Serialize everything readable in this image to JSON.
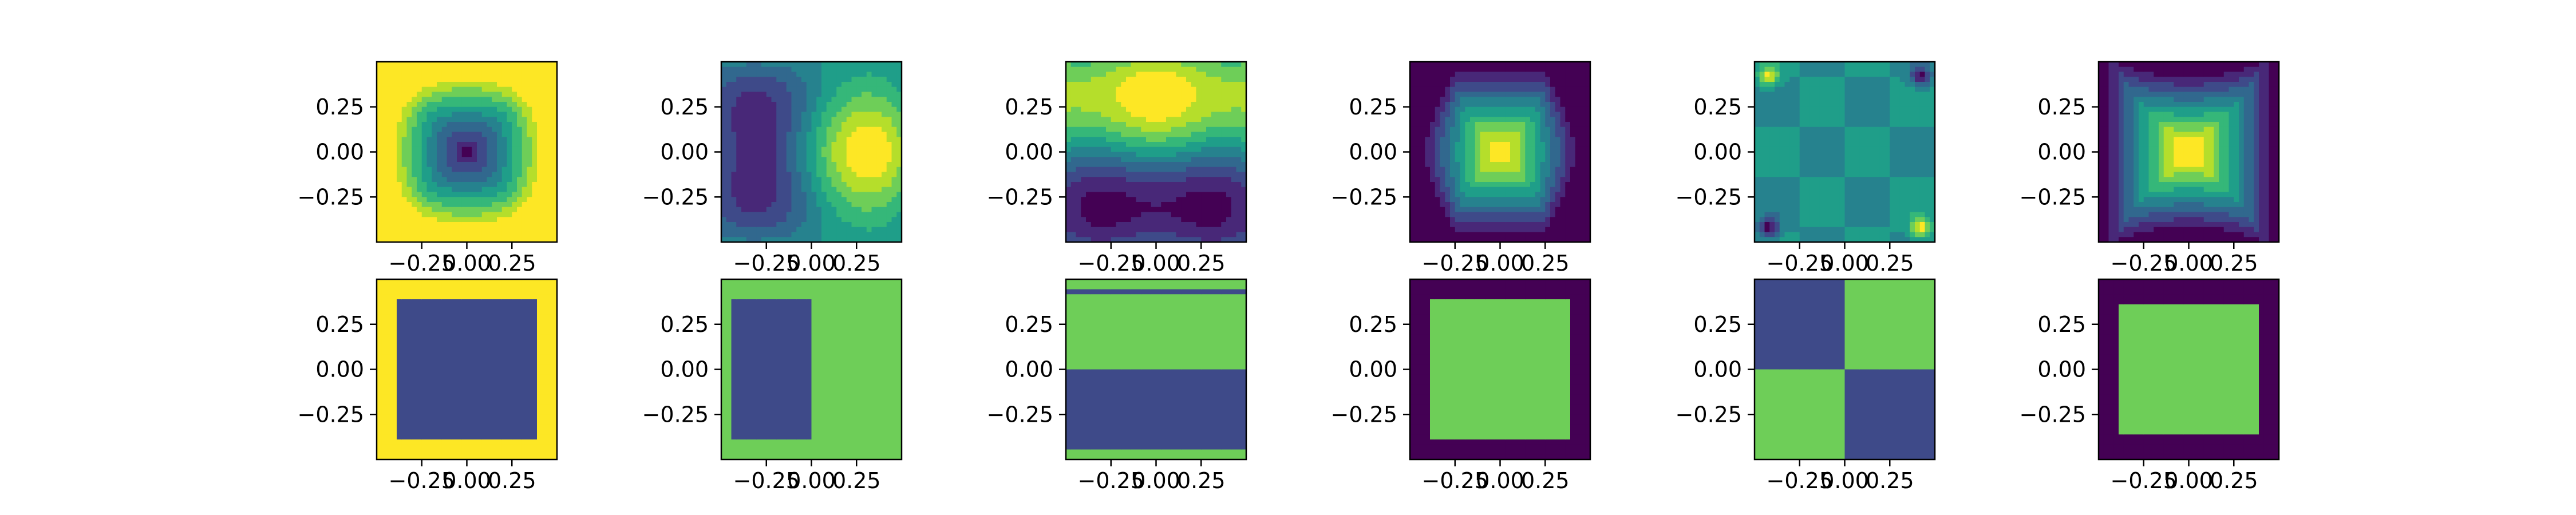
{
  "figure": {
    "layout": "2 rows x 6 columns of contour subplots",
    "colormap": [
      "#440154",
      "#482878",
      "#3e4a89",
      "#31688e",
      "#26828e",
      "#1f9e89",
      "#35b779",
      "#6ece58",
      "#b5de2b",
      "#fde725"
    ]
  },
  "chart_data": [
    {
      "type": "heatmap",
      "row": 1,
      "col": 1,
      "pattern": "square well, minimum at center",
      "xlim": [
        -0.5,
        0.5
      ],
      "ylim": [
        -0.5,
        0.5
      ],
      "xticks": [
        "−0.25",
        "0.00",
        "0.25"
      ],
      "yticks": [
        "0.25",
        "0.00",
        "−0.25"
      ],
      "grid": false
    },
    {
      "type": "heatmap",
      "row": 1,
      "col": 2,
      "pattern": "low lobe left, high lobe right",
      "xlim": [
        -0.5,
        0.5
      ],
      "ylim": [
        -0.5,
        0.5
      ],
      "xticks": [
        "−0.25",
        "0.00",
        "0.25"
      ],
      "yticks": [
        "0.25",
        "0.00",
        "−0.25"
      ],
      "grid": false
    },
    {
      "type": "heatmap",
      "row": 1,
      "col": 3,
      "pattern": "high lobe top, low lobe bottom",
      "xlim": [
        -0.5,
        0.5
      ],
      "ylim": [
        -0.5,
        0.5
      ],
      "xticks": [
        "−0.25",
        "0.00",
        "0.25"
      ],
      "yticks": [
        "0.25",
        "0.00",
        "−0.25"
      ],
      "grid": false
    },
    {
      "type": "heatmap",
      "row": 1,
      "col": 4,
      "pattern": "hourglass peak at center, low border",
      "xlim": [
        -0.5,
        0.5
      ],
      "ylim": [
        -0.5,
        0.5
      ],
      "xticks": [
        "−0.25",
        "0.00",
        "0.25"
      ],
      "yticks": [
        "0.25",
        "0.00",
        "−0.25"
      ],
      "grid": false
    },
    {
      "type": "heatmap",
      "row": 1,
      "col": 5,
      "pattern": "flat field with corner extremes",
      "xlim": [
        -0.5,
        0.5
      ],
      "ylim": [
        -0.5,
        0.5
      ],
      "xticks": [
        "−0.25",
        "0.00",
        "0.25"
      ],
      "yticks": [
        "0.25",
        "0.00",
        "−0.25"
      ],
      "grid": false
    },
    {
      "type": "heatmap",
      "row": 1,
      "col": 6,
      "pattern": "wide peak at center, low border",
      "xlim": [
        -0.5,
        0.5
      ],
      "ylim": [
        -0.5,
        0.5
      ],
      "xticks": [
        "−0.25",
        "0.00",
        "0.25"
      ],
      "yticks": [
        "0.25",
        "0.00",
        "−0.25"
      ],
      "grid": false
    },
    {
      "type": "heatmap",
      "row": 2,
      "col": 1,
      "pattern": "two-level: low square in high border",
      "xlim": [
        -0.5,
        0.5
      ],
      "ylim": [
        -0.5,
        0.5
      ],
      "xticks": [
        "−0.25",
        "0.00",
        "0.25"
      ],
      "yticks": [
        "0.25",
        "0.00",
        "−0.25"
      ],
      "grid": false
    },
    {
      "type": "heatmap",
      "row": 2,
      "col": 2,
      "pattern": "two-level: left/right regions",
      "xlim": [
        -0.5,
        0.5
      ],
      "ylim": [
        -0.5,
        0.5
      ],
      "xticks": [
        "−0.25",
        "0.00",
        "0.25"
      ],
      "yticks": [
        "0.25",
        "0.00",
        "−0.25"
      ],
      "grid": false
    },
    {
      "type": "heatmap",
      "row": 2,
      "col": 3,
      "pattern": "two-level: top/bottom regions",
      "xlim": [
        -0.5,
        0.5
      ],
      "ylim": [
        -0.5,
        0.5
      ],
      "xticks": [
        "−0.25",
        "0.00",
        "0.25"
      ],
      "yticks": [
        "0.25",
        "0.00",
        "−0.25"
      ],
      "grid": false
    },
    {
      "type": "heatmap",
      "row": 2,
      "col": 4,
      "pattern": "two-level: high square in low border",
      "xlim": [
        -0.5,
        0.5
      ],
      "ylim": [
        -0.5,
        0.5
      ],
      "xticks": [
        "−0.25",
        "0.00",
        "0.25"
      ],
      "yticks": [
        "0.25",
        "0.00",
        "−0.25"
      ],
      "grid": false
    },
    {
      "type": "heatmap",
      "row": 2,
      "col": 5,
      "pattern": "two-level: checkerboard quadrants",
      "xlim": [
        -0.5,
        0.5
      ],
      "ylim": [
        -0.5,
        0.5
      ],
      "xticks": [
        "−0.25",
        "0.00",
        "0.25"
      ],
      "yticks": [
        "0.25",
        "0.00",
        "−0.25"
      ],
      "grid": false
    },
    {
      "type": "heatmap",
      "row": 2,
      "col": 6,
      "pattern": "two-level: high square in low border",
      "xlim": [
        -0.5,
        0.5
      ],
      "ylim": [
        -0.5,
        0.5
      ],
      "xticks": [
        "−0.25",
        "0.00",
        "0.25"
      ],
      "yticks": [
        "0.25",
        "0.00",
        "−0.25"
      ],
      "grid": false
    }
  ]
}
